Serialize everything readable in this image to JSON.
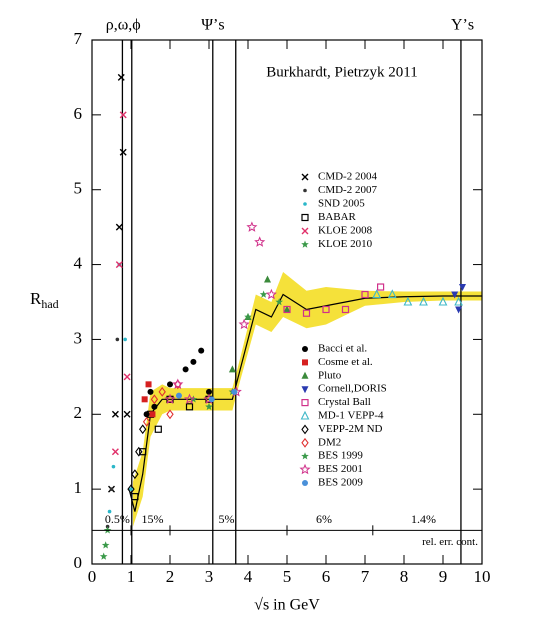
{
  "chart_data": {
    "type": "scatter",
    "title": "Burkhardt, Pietrzyk 2011",
    "xlabel": "√s in GeV",
    "ylabel": {
      "main": "R",
      "sub": "had"
    },
    "xlim": [
      0,
      10
    ],
    "ylim": [
      0,
      7
    ],
    "xticks": [
      0,
      1,
      2,
      3,
      4,
      5,
      6,
      7,
      8,
      9,
      10
    ],
    "yticks": [
      0,
      1,
      2,
      3,
      4,
      5,
      6,
      7
    ],
    "top_labels": [
      {
        "text": "ρ,ω,ϕ",
        "x": 0.8
      },
      {
        "text": "Ψ’s",
        "x": 3.1
      },
      {
        "text": "Υ’s",
        "x": 9.5
      }
    ],
    "resonance_lines": [
      0.78,
      1.02,
      3.097,
      3.686,
      9.46
    ],
    "error_line_y": 0.45,
    "error_boundaries": [
      1.0,
      2.0,
      5.0,
      7.2
    ],
    "error_labels": [
      {
        "text": "0.5%",
        "x": 0.65
      },
      {
        "text": "15%",
        "x": 1.55
      },
      {
        "text": "5%",
        "x": 3.45
      },
      {
        "text": "6%",
        "x": 5.95
      },
      {
        "text": "1.4%",
        "x": 8.5
      }
    ],
    "error_note": "rel. err. cont.",
    "curve": {
      "x": [
        0.95,
        1.05,
        1.1,
        1.3,
        1.5,
        1.8,
        2.0,
        2.5,
        3.0,
        3.6,
        3.8,
        4.0,
        4.2,
        4.6,
        4.9,
        5.5,
        6.0,
        7.0,
        8.0,
        9.0,
        10.0
      ],
      "values": [
        1.0,
        0.8,
        0.7,
        1.2,
        2.0,
        2.2,
        2.2,
        2.2,
        2.2,
        2.2,
        2.6,
        3.0,
        3.4,
        3.3,
        3.6,
        3.4,
        3.45,
        3.55,
        3.57,
        3.58,
        3.58
      ],
      "color": "#000000"
    },
    "band": {
      "x": [
        1.05,
        1.3,
        1.5,
        1.8,
        2.0,
        2.5,
        3.0,
        3.6,
        3.8,
        4.2,
        4.6,
        4.9,
        5.5,
        6.0,
        7.0,
        8.0,
        9.0,
        10.0
      ],
      "lower": [
        0.5,
        0.9,
        1.7,
        2.0,
        2.05,
        2.05,
        2.05,
        2.05,
        2.45,
        3.2,
        3.1,
        3.3,
        3.15,
        3.2,
        3.45,
        3.5,
        3.52,
        3.52
      ],
      "upper": [
        1.1,
        1.5,
        2.3,
        2.4,
        2.35,
        2.35,
        2.35,
        2.35,
        2.75,
        3.6,
        3.5,
        3.9,
        3.65,
        3.7,
        3.65,
        3.64,
        3.64,
        3.64
      ],
      "color": "#f5e13a"
    },
    "series": [
      {
        "name": "CMD-2 2004",
        "color": "#000000",
        "marker": "x",
        "x": [
          0.5,
          0.6,
          0.7,
          0.75,
          0.8,
          0.9
        ],
        "values": [
          1.0,
          2.0,
          4.5,
          6.5,
          5.5,
          2.0
        ]
      },
      {
        "name": "CMD-2 2007",
        "color": "#333333",
        "marker": "dot",
        "x": [
          0.4,
          0.5,
          0.65
        ],
        "values": [
          0.5,
          1.0,
          3.0
        ]
      },
      {
        "name": "SND 2005",
        "color": "#2ab7c9",
        "marker": "dot",
        "x": [
          0.45,
          0.55,
          0.7,
          0.85,
          1.0
        ],
        "values": [
          0.7,
          1.3,
          4.0,
          3.0,
          1.0
        ]
      },
      {
        "name": "BABAR",
        "color": "#000000",
        "marker": "open-square",
        "x": [
          1.1,
          1.3,
          1.5,
          1.7,
          2.0,
          2.5,
          3.0
        ],
        "values": [
          0.9,
          1.5,
          2.0,
          1.8,
          2.2,
          2.1,
          2.2
        ]
      },
      {
        "name": "KLOE 2008",
        "color": "#e0306a",
        "marker": "x",
        "x": [
          0.6,
          0.7,
          0.8,
          0.9
        ],
        "values": [
          1.5,
          4.0,
          6.0,
          2.5
        ]
      },
      {
        "name": "KLOE 2010",
        "color": "#3b9a4a",
        "marker": "star",
        "x": [
          0.3,
          0.35,
          0.4
        ],
        "values": [
          0.1,
          0.25,
          0.45
        ]
      },
      {
        "name": "Bacci et al.",
        "color": "#000000",
        "marker": "circle",
        "x": [
          1.4,
          1.5,
          1.6,
          2.0,
          2.4,
          2.6,
          2.8,
          3.0
        ],
        "values": [
          2.0,
          2.3,
          2.1,
          2.4,
          2.6,
          2.7,
          2.85,
          2.3
        ]
      },
      {
        "name": "Cosme et al.",
        "color": "#d62020",
        "marker": "square",
        "x": [
          1.35,
          1.45,
          1.55
        ],
        "values": [
          2.2,
          2.4,
          2.0
        ]
      },
      {
        "name": "Pluto",
        "color": "#3b8a3b",
        "marker": "triangle",
        "x": [
          3.6,
          4.0,
          4.5,
          5.0
        ],
        "values": [
          2.6,
          3.3,
          3.8,
          3.4
        ]
      },
      {
        "name": "Cornell,DORIS",
        "color": "#2a3ab0",
        "marker": "triangle-down",
        "x": [
          9.3,
          9.4,
          9.5
        ],
        "values": [
          3.6,
          3.4,
          3.7
        ]
      },
      {
        "name": "Crystal Ball",
        "color": "#d0308a",
        "marker": "open-square",
        "x": [
          5.0,
          5.5,
          6.0,
          6.5,
          7.0,
          7.4
        ],
        "values": [
          3.4,
          3.35,
          3.4,
          3.4,
          3.6,
          3.7
        ]
      },
      {
        "name": "MD-1 VEPP-4",
        "color": "#3fb8c8",
        "marker": "open-triangle",
        "x": [
          7.3,
          7.7,
          8.1,
          8.5,
          9.0,
          9.4
        ],
        "values": [
          3.6,
          3.6,
          3.5,
          3.5,
          3.5,
          3.5
        ]
      },
      {
        "name": "VEPP-2M ND",
        "color": "#000000",
        "marker": "open-diamond",
        "x": [
          1.0,
          1.1,
          1.2,
          1.3
        ],
        "values": [
          1.0,
          1.2,
          1.5,
          1.8
        ]
      },
      {
        "name": "DM2",
        "color": "#e03030",
        "marker": "open-diamond",
        "x": [
          1.4,
          1.6,
          1.8,
          2.0,
          2.2
        ],
        "values": [
          1.9,
          2.2,
          2.3,
          2.0,
          2.4
        ]
      },
      {
        "name": "BES 1999",
        "color": "#3b9a4a",
        "marker": "star",
        "x": [
          2.6,
          3.0,
          3.6,
          4.0,
          4.4,
          4.8
        ],
        "values": [
          2.2,
          2.1,
          2.3,
          3.3,
          3.6,
          3.5
        ]
      },
      {
        "name": "BES 2001",
        "color": "#d0308a",
        "marker": "open-star",
        "x": [
          2.0,
          2.2,
          2.5,
          3.0,
          3.7,
          3.9,
          4.1,
          4.3,
          4.6
        ],
        "values": [
          2.2,
          2.4,
          2.2,
          2.2,
          2.3,
          3.2,
          4.5,
          4.3,
          3.6
        ]
      },
      {
        "name": "BES 2009",
        "color": "#4a90d9",
        "marker": "circle",
        "x": [
          2.23,
          3.07,
          3.65
        ],
        "values": [
          2.25,
          2.2,
          2.3
        ]
      }
    ]
  }
}
